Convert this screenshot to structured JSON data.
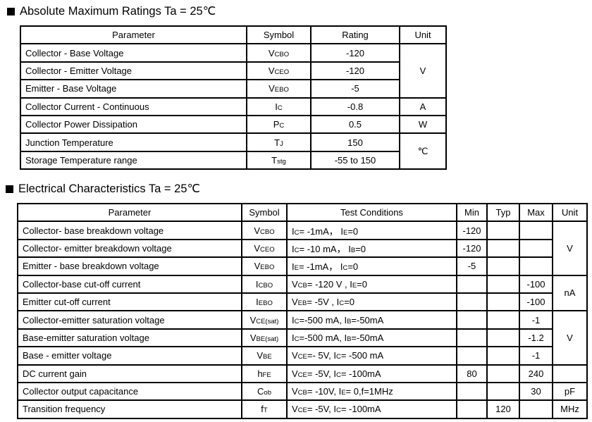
{
  "section1": {
    "title": "Absolute Maximum Ratings Ta = 25℃",
    "headers": [
      "Parameter",
      "Symbol",
      "Rating",
      "Unit"
    ],
    "rows": [
      {
        "parameter": "Collector - Base Voltage",
        "symbol": [
          [
            "V",
            0
          ],
          [
            "CBO",
            1
          ]
        ],
        "rating": "-120"
      },
      {
        "parameter": "Collector - Emitter Voltage",
        "symbol": [
          [
            "V",
            0
          ],
          [
            "CEO",
            1
          ]
        ],
        "rating": "-120"
      },
      {
        "parameter": "Emitter - Base Voltage",
        "symbol": [
          [
            "V",
            0
          ],
          [
            "EBO",
            1
          ]
        ],
        "rating": "-5"
      },
      {
        "parameter": "Collector Current  - Continuous",
        "symbol": [
          [
            "I",
            0
          ],
          [
            "C",
            1
          ]
        ],
        "rating": "-0.8"
      },
      {
        "parameter": "Collector Power Dissipation",
        "symbol": [
          [
            "P",
            0
          ],
          [
            "C",
            1
          ]
        ],
        "rating": "0.5"
      },
      {
        "parameter": "Junction Temperature",
        "symbol": [
          [
            "T",
            0
          ],
          [
            "J",
            1
          ]
        ],
        "rating": "150"
      },
      {
        "parameter": "Storage Temperature range",
        "symbol": [
          [
            "T",
            0
          ],
          [
            "stg",
            1
          ]
        ],
        "rating": "-55 to 150"
      }
    ],
    "units": [
      {
        "label": "V",
        "span": 3
      },
      {
        "label": "A",
        "span": 1
      },
      {
        "label": "W",
        "span": 1
      },
      {
        "label": "℃",
        "span": 2
      }
    ]
  },
  "section2": {
    "title": "Electrical Characteristics Ta = 25℃",
    "headers": [
      "Parameter",
      "Symbol",
      "Test Conditions",
      "Min",
      "Typ",
      "Max",
      "Unit"
    ],
    "rows": [
      {
        "parameter": "Collector- base breakdown voltage",
        "symbol": [
          [
            "V",
            0
          ],
          [
            "CBO",
            1
          ]
        ],
        "conditions": [
          [
            "I",
            0
          ],
          [
            "C",
            1
          ],
          [
            "= -1mA，  I",
            0
          ],
          [
            "E",
            1
          ],
          [
            "=0",
            0
          ]
        ],
        "min": "-120",
        "typ": "",
        "max": ""
      },
      {
        "parameter": "Collector- emitter breakdown voltage",
        "symbol": [
          [
            "V",
            0
          ],
          [
            "CEO",
            1
          ]
        ],
        "conditions": [
          [
            "I",
            0
          ],
          [
            "C",
            1
          ],
          [
            "= -10 mA，  I",
            0
          ],
          [
            "B",
            1
          ],
          [
            "=0",
            0
          ]
        ],
        "min": "-120",
        "typ": "",
        "max": ""
      },
      {
        "parameter": "Emitter - base breakdown voltage",
        "symbol": [
          [
            "V",
            0
          ],
          [
            "EBO",
            1
          ]
        ],
        "conditions": [
          [
            "I",
            0
          ],
          [
            "E",
            1
          ],
          [
            "= -1mA，  I",
            0
          ],
          [
            "C",
            1
          ],
          [
            "=0",
            0
          ]
        ],
        "min": "-5",
        "typ": "",
        "max": ""
      },
      {
        "parameter": "Collector-base cut-off current",
        "symbol": [
          [
            "I",
            0
          ],
          [
            "CBO",
            1
          ]
        ],
        "conditions": [
          [
            "V",
            0
          ],
          [
            "CB",
            1
          ],
          [
            "= -120 V , I",
            0
          ],
          [
            "E",
            1
          ],
          [
            "=0",
            0
          ]
        ],
        "min": "",
        "typ": "",
        "max": "-100"
      },
      {
        "parameter": "Emitter cut-off current",
        "symbol": [
          [
            "I",
            0
          ],
          [
            "EBO",
            1
          ]
        ],
        "conditions": [
          [
            "V",
            0
          ],
          [
            "EB",
            1
          ],
          [
            "= -5V , I",
            0
          ],
          [
            "C",
            1
          ],
          [
            "=0",
            0
          ]
        ],
        "min": "",
        "typ": "",
        "max": "-100"
      },
      {
        "parameter": "Collector-emitter saturation voltage",
        "symbol": [
          [
            "V",
            0
          ],
          [
            "CE(sat)",
            1
          ]
        ],
        "conditions": [
          [
            "I",
            0
          ],
          [
            "C",
            1
          ],
          [
            "=-500 mA, I",
            0
          ],
          [
            "B",
            1
          ],
          [
            "=-50mA",
            0
          ]
        ],
        "min": "",
        "typ": "",
        "max": "-1"
      },
      {
        "parameter": "Base-emitter saturation voltage",
        "symbol": [
          [
            "V",
            0
          ],
          [
            "BE(sat)",
            1
          ]
        ],
        "conditions": [
          [
            "I",
            0
          ],
          [
            "C",
            1
          ],
          [
            "=-500 mA, I",
            0
          ],
          [
            "B",
            1
          ],
          [
            "=-50mA",
            0
          ]
        ],
        "min": "",
        "typ": "",
        "max": "-1.2"
      },
      {
        "parameter": "Base - emitter voltage",
        "symbol": [
          [
            "V",
            0
          ],
          [
            "BE",
            1
          ]
        ],
        "conditions": [
          [
            "V",
            0
          ],
          [
            "CE",
            1
          ],
          [
            "=- 5V, I",
            0
          ],
          [
            "C",
            1
          ],
          [
            "= -500 mA",
            0
          ]
        ],
        "min": "",
        "typ": "",
        "max": "-1"
      },
      {
        "parameter": "DC current gain",
        "symbol": [
          [
            "h",
            0
          ],
          [
            "FE",
            1
          ]
        ],
        "conditions": [
          [
            "V",
            0
          ],
          [
            "CE",
            1
          ],
          [
            "= -5V, I",
            0
          ],
          [
            "C",
            1
          ],
          [
            "= -100mA",
            0
          ]
        ],
        "min": "80",
        "typ": "",
        "max": "240"
      },
      {
        "parameter": "Collector output  capacitance",
        "symbol": [
          [
            "C",
            0
          ],
          [
            "ob",
            1
          ]
        ],
        "conditions": [
          [
            "V",
            0
          ],
          [
            "CB",
            1
          ],
          [
            "= -10V, I",
            0
          ],
          [
            "E",
            1
          ],
          [
            "= 0,f=1MHz",
            0
          ]
        ],
        "min": "",
        "typ": "",
        "max": "30"
      },
      {
        "parameter": "Transition frequency",
        "symbol": [
          [
            "f",
            0
          ],
          [
            "T",
            1
          ]
        ],
        "conditions": [
          [
            "V",
            0
          ],
          [
            "CE",
            1
          ],
          [
            "= -5V, I",
            0
          ],
          [
            "C",
            1
          ],
          [
            "= -100mA",
            0
          ]
        ],
        "min": "",
        "typ": "120",
        "max": ""
      }
    ],
    "units": [
      {
        "label": "V",
        "span": 3
      },
      {
        "label": "nA",
        "span": 2
      },
      {
        "label": "V",
        "span": 3
      },
      {
        "label": "",
        "span": 1
      },
      {
        "label": "pF",
        "span": 1
      },
      {
        "label": "MHz",
        "span": 1
      }
    ]
  }
}
